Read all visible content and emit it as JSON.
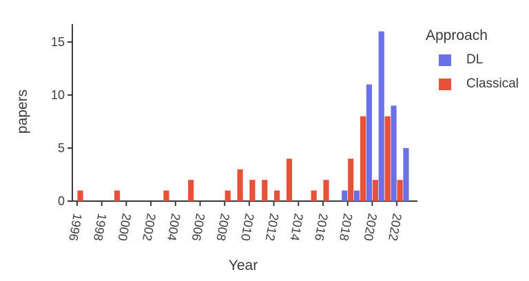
{
  "figure": {
    "background": "#ffffff"
  },
  "chart_data": {
    "type": "bar",
    "title": "",
    "xlabel": "Year",
    "ylabel": "papers",
    "x_tick_labels": [
      1996,
      1998,
      2000,
      2002,
      2004,
      2006,
      2008,
      2010,
      2012,
      2014,
      2016,
      2018,
      2020,
      2022
    ],
    "x_tick_rotation_deg": 100,
    "yticks": [
      0,
      5,
      10,
      15
    ],
    "ylim": [
      0,
      16.8
    ],
    "x_category_range": [
      1996,
      2023
    ],
    "grid": false,
    "bar_layout": "grouped: DL bar left of year tick, Classical bar right of year tick",
    "legend": {
      "title": "Approach",
      "position": "top-right"
    },
    "axis_color": "#3b3b3b",
    "text_color": "#3d3d3d",
    "series": [
      {
        "name": "DL",
        "color": "#6b6fe8",
        "years": [
          2018,
          2019,
          2020,
          2021,
          2022,
          2023
        ],
        "values": [
          1,
          1,
          11,
          16,
          9,
          5
        ]
      },
      {
        "name": "Classical",
        "color": "#e8503a",
        "years": [
          1996,
          1999,
          2003,
          2005,
          2008,
          2009,
          2010,
          2011,
          2012,
          2013,
          2015,
          2016,
          2018,
          2019,
          2020,
          2021,
          2022
        ],
        "values": [
          1,
          1,
          1,
          2,
          1,
          3,
          2,
          2,
          1,
          4,
          1,
          2,
          4,
          8,
          2,
          8,
          2
        ]
      }
    ]
  }
}
